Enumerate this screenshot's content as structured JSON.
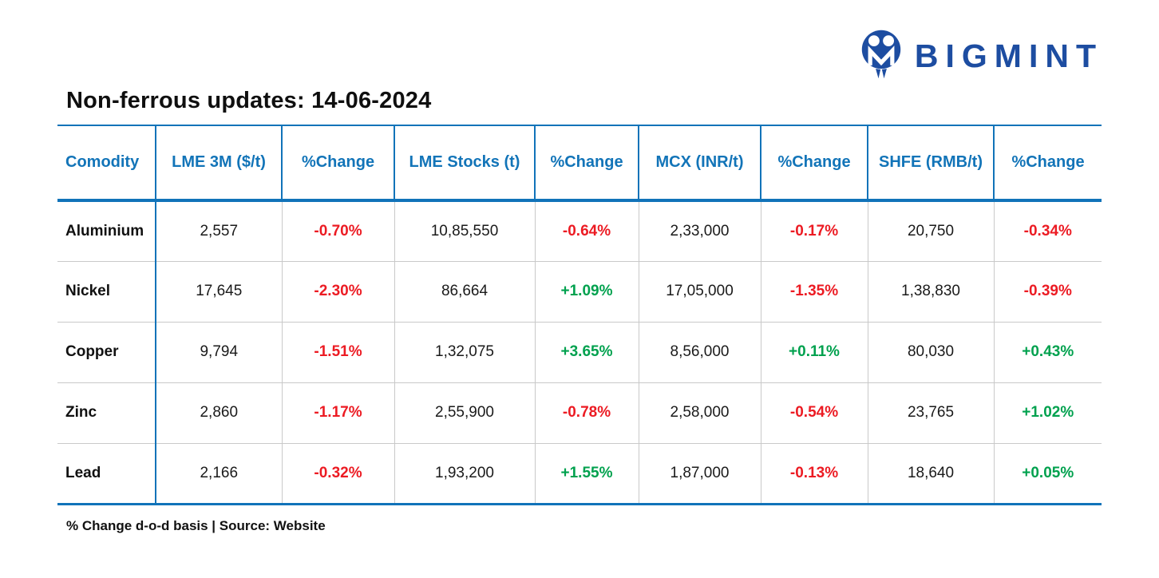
{
  "brand": {
    "name": "BIGMINT",
    "logo_icon": "bigmint-owl-m-mark",
    "logo_color": "#1d4da1"
  },
  "colors": {
    "table_blue": "#1173b9",
    "header_text_blue": "#1274b8",
    "negative_red": "#ec1b23",
    "positive_green": "#00a14e"
  },
  "chart_data": {
    "type": "table",
    "title": "Non-ferrous updates: 14-06-2024",
    "columns": [
      "Comodity",
      "LME 3M ($/t)",
      "%Change",
      "LME Stocks (t)",
      "%Change",
      "MCX (INR/t)",
      "%Change",
      "SHFE (RMB/t)",
      "%Change"
    ],
    "rows": [
      {
        "name": "Aluminium",
        "values": [
          "2,557",
          "-0.70%",
          "10,85,550",
          "-0.64%",
          "2,33,000",
          "-0.17%",
          "20,750",
          "-0.34%"
        ]
      },
      {
        "name": "Nickel",
        "values": [
          "17,645",
          "-2.30%",
          "86,664",
          "+1.09%",
          "17,05,000",
          "-1.35%",
          "1,38,830",
          "-0.39%"
        ]
      },
      {
        "name": "Copper",
        "values": [
          "9,794",
          "-1.51%",
          "1,32,075",
          "+3.65%",
          "8,56,000",
          "+0.11%",
          "80,030",
          "+0.43%"
        ]
      },
      {
        "name": "Zinc",
        "values": [
          "2,860",
          "-1.17%",
          "2,55,900",
          "-0.78%",
          "2,58,000",
          "-0.54%",
          "23,765",
          "+1.02%"
        ]
      },
      {
        "name": "Lead",
        "values": [
          "2,166",
          "-0.32%",
          "1,93,200",
          "+1.55%",
          "1,87,000",
          "-0.13%",
          "18,640",
          "+0.05%"
        ]
      }
    ],
    "footnote": "% Change d-o-d basis | Source: Website"
  }
}
